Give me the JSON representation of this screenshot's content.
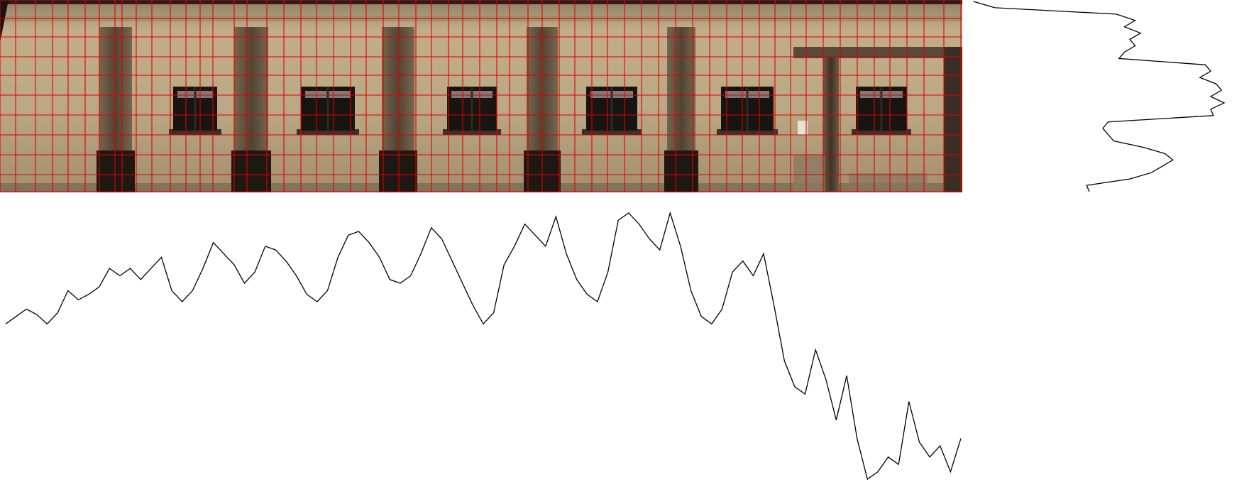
{
  "colors": {
    "background": "#ffffff",
    "grid": "#e00000",
    "profile_line": "#000000",
    "wall": "#b9a37f",
    "wall_dark": "#9a8463",
    "column": "#4a3d30",
    "window": "#1a1a1a",
    "window_light": "#d9d9d9",
    "top_band": "#2a1c1a"
  },
  "facade": {
    "name": "rectified-building-facade",
    "grid_columns": 44,
    "grid_rows": 8
  },
  "vertical_profile": {
    "name": "vertical-intensity-profile",
    "values": [
      0.02,
      0.1,
      0.55,
      0.62,
      0.58,
      0.64,
      0.6,
      0.62,
      0.58,
      0.56,
      0.88,
      0.9,
      0.86,
      0.92,
      0.94,
      0.9,
      0.95,
      0.9,
      0.91,
      0.52,
      0.5,
      0.52,
      0.54,
      0.65,
      0.73,
      0.76,
      0.72,
      0.68,
      0.6,
      0.44,
      0.45
    ]
  },
  "horizontal_profile": {
    "name": "horizontal-intensity-profile",
    "values": [
      0.02,
      0.06,
      0.1,
      0.07,
      0.02,
      0.08,
      0.2,
      0.15,
      0.18,
      0.22,
      0.32,
      0.28,
      0.32,
      0.26,
      0.32,
      0.38,
      0.2,
      0.14,
      0.2,
      0.32,
      0.46,
      0.4,
      0.34,
      0.24,
      0.3,
      0.44,
      0.42,
      0.36,
      0.28,
      0.18,
      0.14,
      0.2,
      0.38,
      0.5,
      0.52,
      0.46,
      0.38,
      0.26,
      0.24,
      0.28,
      0.4,
      0.54,
      0.48,
      0.36,
      0.24,
      0.12,
      0.02,
      0.08,
      0.34,
      0.44,
      0.56,
      0.5,
      0.44,
      0.6,
      0.4,
      0.26,
      0.18,
      0.14,
      0.3,
      0.58,
      0.62,
      0.56,
      0.48,
      0.42,
      0.62,
      0.44,
      0.2,
      0.06,
      0.02,
      0.1,
      0.3,
      0.36,
      0.28,
      0.4,
      0.12,
      -0.18,
      -0.32,
      -0.36,
      -0.12,
      -0.28,
      -0.5,
      -0.26,
      -0.6,
      -0.82,
      -0.78,
      -0.7,
      -0.74,
      -0.4,
      -0.62,
      -0.7,
      -0.64,
      -0.78,
      -0.6
    ]
  }
}
